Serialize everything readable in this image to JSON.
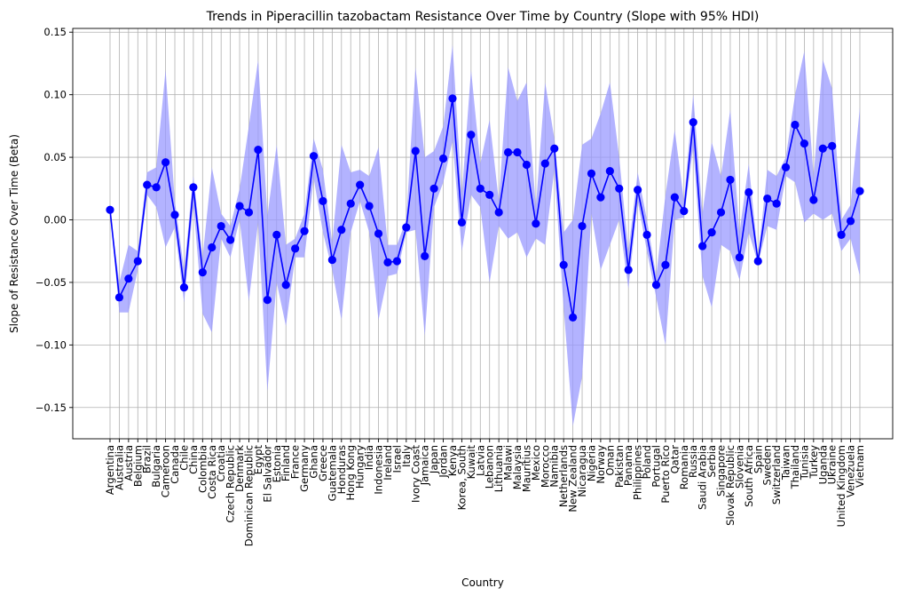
{
  "chart_data": {
    "type": "line",
    "title": "Trends in Piperacillin tazobactam Resistance Over Time by Country (Slope with 95% HDI)",
    "xlabel": "Country",
    "ylabel": "Slope of Resistance Over Time (Beta)",
    "ylim": [
      -0.175,
      0.153
    ],
    "yticks": [
      -0.15,
      -0.1,
      -0.05,
      0.0,
      0.05,
      0.1,
      0.15
    ],
    "ytick_labels": [
      "−0.15",
      "−0.10",
      "−0.05",
      "0.00",
      "0.05",
      "0.10",
      "0.15"
    ],
    "grid": true,
    "colors": {
      "line": "#0000ff",
      "band": "#9999ff",
      "grid": "#b0b0b0"
    },
    "categories": [
      "Argentina",
      "Australia",
      "Austria",
      "Belgium",
      "Brazil",
      "Bulgaria",
      "Cameroon",
      "Canada",
      "Chile",
      "China",
      "Colombia",
      "Costa Rica",
      "Croatia",
      "Czech Republic",
      "Denmark",
      "Dominican Republic",
      "Egypt",
      "El Salvador",
      "Estonia",
      "Finland",
      "France",
      "Germany",
      "Ghana",
      "Greece",
      "Guatemala",
      "Honduras",
      "Hong Kong",
      "Hungary",
      "India",
      "Indonesia",
      "Ireland",
      "Israel",
      "Italy",
      "Ivory Coast",
      "Jamaica",
      "Japan",
      "Jordan",
      "Kenya",
      "Korea, South",
      "Kuwait",
      "Latvia",
      "Lebanon",
      "Lithuania",
      "Malawi",
      "Malaysia",
      "Mauritius",
      "Mexico",
      "Morocco",
      "Namibia",
      "Netherlands",
      "New Zealand",
      "Nicaragua",
      "Nigeria",
      "Norway",
      "Oman",
      "Pakistan",
      "Panama",
      "Philippines",
      "Poland",
      "Portugal",
      "Puerto Rico",
      "Qatar",
      "Romania",
      "Russia",
      "Saudi Arabia",
      "Serbia",
      "Singapore",
      "Slovak Republic",
      "Slovenia",
      "South Africa",
      "Spain",
      "Sweden",
      "Switzerland",
      "Taiwan",
      "Thailand",
      "Tunisia",
      "Turkey",
      "Uganda",
      "Ukraine",
      "United Kingdom",
      "Venezuela",
      "Vietnam"
    ],
    "series": [
      {
        "values": [
          0.008,
          -0.062,
          -0.047,
          -0.033,
          0.028,
          0.026,
          0.046,
          0.004,
          -0.054,
          0.026,
          -0.042,
          -0.022,
          -0.005,
          -0.016,
          0.011,
          0.006,
          0.056,
          -0.064,
          -0.012,
          -0.052,
          -0.023,
          -0.009,
          0.051,
          0.015,
          -0.032,
          -0.008,
          0.013,
          0.028,
          0.011,
          -0.011,
          -0.034,
          -0.033,
          -0.006,
          0.055,
          -0.029,
          0.025,
          0.049,
          0.097,
          -0.002,
          0.068,
          0.025,
          0.02,
          0.006,
          0.054,
          0.054,
          0.044,
          -0.003,
          0.045,
          0.057,
          -0.036,
          -0.078,
          -0.005,
          0.037,
          0.018,
          0.039,
          0.025,
          -0.04,
          0.024,
          -0.012,
          -0.052,
          -0.036,
          0.018,
          0.007,
          0.078,
          -0.021,
          -0.01,
          0.006,
          0.032,
          -0.03,
          0.022,
          -0.033,
          0.017,
          0.013,
          0.042,
          0.076,
          0.061,
          0.016,
          0.057,
          0.059,
          -0.012,
          -0.001,
          0.023
        ],
        "hdi_low": [
          0.008,
          -0.074,
          -0.074,
          -0.04,
          0.02,
          0.01,
          -0.022,
          -0.006,
          -0.066,
          0.012,
          -0.075,
          -0.09,
          -0.015,
          -0.03,
          0.0,
          -0.065,
          -0.002,
          -0.137,
          -0.05,
          -0.085,
          -0.03,
          -0.03,
          0.033,
          -0.01,
          -0.04,
          -0.08,
          -0.01,
          0.015,
          -0.01,
          -0.08,
          -0.045,
          -0.043,
          -0.01,
          -0.008,
          -0.093,
          0.01,
          0.03,
          0.063,
          -0.025,
          0.02,
          0.01,
          -0.05,
          -0.005,
          -0.015,
          -0.01,
          -0.03,
          -0.015,
          -0.02,
          0.04,
          -0.07,
          -0.165,
          -0.125,
          0.005,
          -0.04,
          -0.02,
          0.0,
          -0.055,
          0.015,
          -0.025,
          -0.062,
          -0.1,
          0.0,
          0.002,
          0.058,
          -0.045,
          -0.07,
          -0.02,
          -0.025,
          -0.048,
          -0.01,
          -0.035,
          -0.005,
          -0.008,
          0.035,
          0.03,
          -0.002,
          0.005,
          0.0,
          0.005,
          -0.025,
          -0.015,
          -0.045
        ],
        "hdi_high": [
          0.008,
          -0.05,
          -0.02,
          -0.025,
          0.038,
          0.042,
          0.12,
          0.015,
          -0.04,
          0.035,
          -0.03,
          0.042,
          0.005,
          -0.005,
          0.025,
          0.075,
          0.128,
          0.003,
          0.06,
          -0.02,
          -0.015,
          0.005,
          0.065,
          0.04,
          -0.018,
          0.06,
          0.038,
          0.04,
          0.035,
          0.058,
          -0.02,
          -0.02,
          0.0,
          0.122,
          0.05,
          0.055,
          0.075,
          0.14,
          0.02,
          0.12,
          0.045,
          0.08,
          0.015,
          0.122,
          0.095,
          0.11,
          0.01,
          0.11,
          0.065,
          -0.01,
          0.0,
          0.06,
          0.065,
          0.085,
          0.11,
          0.05,
          -0.025,
          0.038,
          0.0,
          -0.045,
          0.02,
          0.072,
          0.015,
          0.1,
          0.005,
          0.062,
          0.035,
          0.088,
          -0.01,
          0.045,
          -0.03,
          0.04,
          0.035,
          0.05,
          0.1,
          0.135,
          0.035,
          0.128,
          0.105,
          0.0,
          0.012,
          0.09
        ]
      }
    ]
  }
}
